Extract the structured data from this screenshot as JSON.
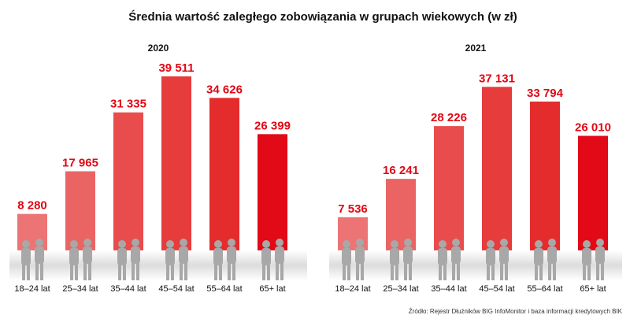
{
  "title": "Średnia wartość zaległego zobowiązania w grupach wiekowych (w zł)",
  "source": "Źródło: Rejestr Dłużników BIG InfoMonitor i baza informacji kredytowych BIK",
  "chart_data": [
    {
      "type": "bar",
      "title": "2020",
      "categories": [
        "18–24 lat",
        "25–34 lat",
        "35–44 lat",
        "45–54 lat",
        "55–64 lat",
        "65+ lat"
      ],
      "values": [
        8280,
        17965,
        31335,
        39511,
        34626,
        26399
      ],
      "value_labels": [
        "8 280",
        "17 965",
        "31 335",
        "39 511",
        "34 626",
        "26 399"
      ],
      "colors": [
        "#ec7474",
        "#ea6464",
        "#e84c4c",
        "#e63c3c",
        "#e42c2c",
        "#e20a17"
      ]
    },
    {
      "type": "bar",
      "title": "2021",
      "categories": [
        "18–24 lat",
        "25–34 lat",
        "35–44 lat",
        "45–54 lat",
        "55–64 lat",
        "65+ lat"
      ],
      "values": [
        7536,
        16241,
        28226,
        37131,
        33794,
        26010
      ],
      "value_labels": [
        "7 536",
        "16 241",
        "28 226",
        "37 131",
        "33 794",
        "26 010"
      ],
      "colors": [
        "#ec7474",
        "#ea6464",
        "#e84c4c",
        "#e63c3c",
        "#e42c2c",
        "#e20a17"
      ]
    }
  ]
}
